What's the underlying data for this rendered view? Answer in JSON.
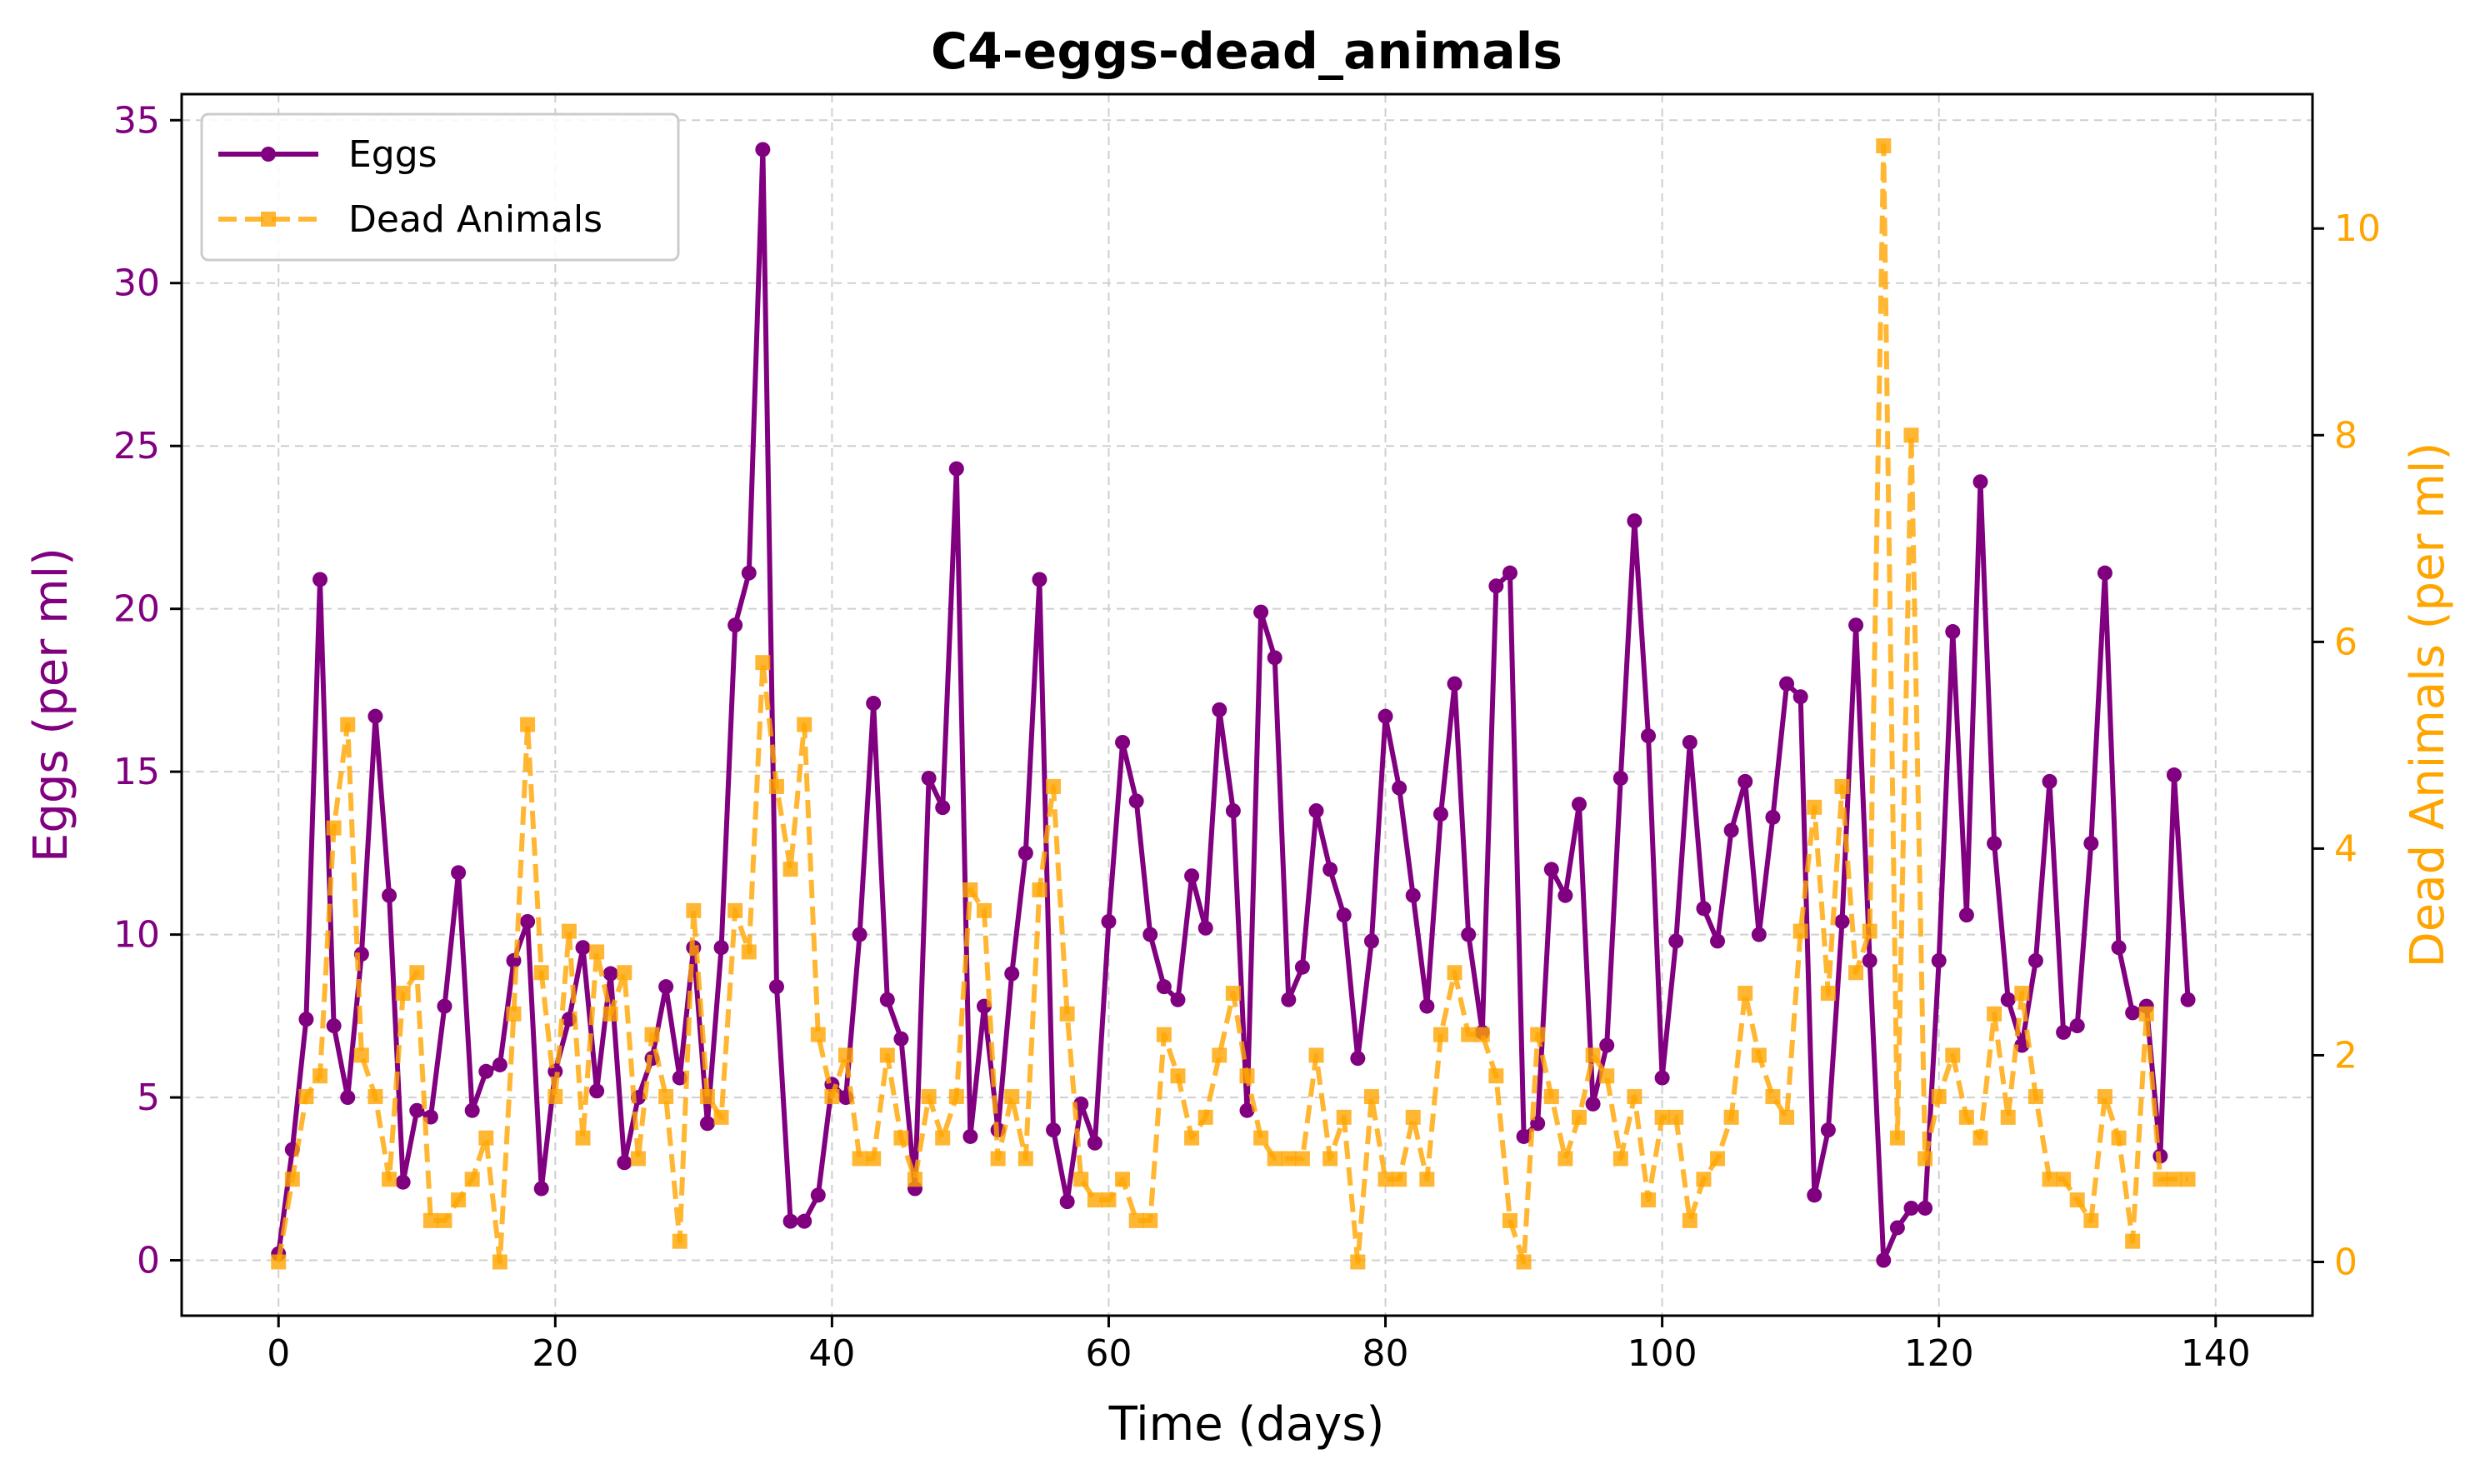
{
  "chart_data": {
    "type": "line",
    "title": "C4-eggs-dead_animals",
    "xlabel": "Time (days)",
    "ylabel": "Eggs (per ml)",
    "ylabel_right": "Dead Animals (per ml)",
    "xlim": [
      -7,
      147
    ],
    "ylim": [
      -1.7,
      35.8
    ],
    "ylim_right": [
      -0.52,
      11.3
    ],
    "x_ticks": [
      0,
      20,
      40,
      60,
      80,
      100,
      120,
      140
    ],
    "y_ticks": [
      0,
      5,
      10,
      15,
      20,
      25,
      30,
      35
    ],
    "y_ticks_right": [
      0,
      2,
      4,
      6,
      8,
      10
    ],
    "grid": true,
    "legend_position": "top-left",
    "x": [
      0,
      1,
      2,
      3,
      4,
      5,
      6,
      7,
      8,
      9,
      10,
      11,
      12,
      13,
      14,
      15,
      16,
      17,
      18,
      19,
      20,
      21,
      22,
      23,
      24,
      25,
      26,
      27,
      28,
      29,
      30,
      31,
      32,
      33,
      34,
      35,
      36,
      37,
      38,
      39,
      40,
      41,
      42,
      43,
      44,
      45,
      46,
      47,
      48,
      49,
      50,
      51,
      52,
      53,
      54,
      55,
      56,
      57,
      58,
      59,
      60,
      61,
      62,
      63,
      64,
      65,
      66,
      67,
      68,
      69,
      70,
      71,
      72,
      73,
      74,
      75,
      76,
      77,
      78,
      79,
      80,
      81,
      82,
      83,
      84,
      85,
      86,
      87,
      88,
      89,
      90,
      91,
      92,
      93,
      94,
      95,
      96,
      97,
      98,
      99,
      100,
      101,
      102,
      103,
      104,
      105,
      106,
      107,
      108,
      109,
      110,
      111,
      112,
      113,
      114,
      115,
      116,
      117,
      118,
      119,
      120,
      121,
      122,
      123,
      124,
      125,
      126,
      127,
      128,
      129,
      130,
      131,
      132,
      133,
      134,
      135,
      136,
      137,
      138
    ],
    "series": [
      {
        "name": "Eggs",
        "color": "#800080",
        "style": "solid",
        "marker": "circle",
        "axis": "left",
        "values": [
          0.2,
          3.4,
          7.4,
          20.9,
          7.2,
          5.0,
          9.4,
          16.7,
          11.2,
          2.4,
          4.6,
          4.4,
          7.8,
          11.9,
          4.6,
          5.8,
          6.0,
          9.2,
          10.4,
          2.2,
          5.8,
          7.4,
          9.6,
          5.2,
          8.8,
          3.0,
          5.0,
          6.2,
          8.4,
          5.6,
          9.6,
          4.2,
          9.6,
          19.5,
          21.1,
          34.1,
          8.4,
          1.2,
          1.2,
          2.0,
          5.4,
          5.0,
          10.0,
          17.1,
          8.0,
          6.8,
          2.2,
          14.8,
          13.9,
          24.3,
          3.8,
          7.8,
          4.0,
          8.8,
          12.5,
          20.9,
          4.0,
          1.8,
          4.8,
          3.6,
          10.4,
          15.9,
          14.1,
          10.0,
          8.4,
          8.0,
          11.8,
          10.2,
          16.9,
          13.8,
          4.6,
          19.9,
          18.5,
          8.0,
          9.0,
          13.8,
          12.0,
          10.6,
          6.2,
          9.8,
          16.7,
          14.5,
          11.2,
          7.8,
          13.7,
          17.7,
          10.0,
          7.0,
          20.7,
          21.1,
          3.8,
          4.2,
          12.0,
          11.2,
          14.0,
          4.8,
          6.6,
          14.8,
          22.7,
          16.1,
          5.6,
          9.8,
          15.9,
          10.8,
          9.8,
          13.2,
          14.7,
          10.0,
          13.6,
          17.7,
          17.3,
          2.0,
          4.0,
          10.4,
          19.5,
          9.2,
          0.0,
          1.0,
          1.6,
          1.6,
          9.2,
          19.3,
          10.6,
          23.9,
          12.8,
          8.0,
          6.6,
          9.2,
          14.7,
          7.0,
          7.2,
          12.8,
          21.1,
          9.6,
          7.6,
          7.8,
          3.2,
          14.9,
          8.0
        ]
      },
      {
        "name": "Dead Animals",
        "color": "#FFA500",
        "style": "dashed",
        "marker": "square",
        "axis": "right",
        "values": [
          0.0,
          0.8,
          1.6,
          1.8,
          4.2,
          5.2,
          2.0,
          1.6,
          0.8,
          2.6,
          2.8,
          0.4,
          0.4,
          0.6,
          0.8,
          1.2,
          0.0,
          2.4,
          5.2,
          2.8,
          1.6,
          3.2,
          1.2,
          3.0,
          2.4,
          2.8,
          1.0,
          2.2,
          1.6,
          0.2,
          3.4,
          1.6,
          1.4,
          3.4,
          3.0,
          5.8,
          4.6,
          3.8,
          5.2,
          2.2,
          1.6,
          2.0,
          1.0,
          1.0,
          2.0,
          1.2,
          0.8,
          1.6,
          1.2,
          1.6,
          3.6,
          3.4,
          1.0,
          1.6,
          1.0,
          3.6,
          4.6,
          2.4,
          0.8,
          0.6,
          0.6,
          0.8,
          0.4,
          0.4,
          2.2,
          1.8,
          1.2,
          1.4,
          2.0,
          2.6,
          1.8,
          1.2,
          1.0,
          1.0,
          1.0,
          2.0,
          1.0,
          1.4,
          0.0,
          1.6,
          0.8,
          0.8,
          1.4,
          0.8,
          2.2,
          2.8,
          2.2,
          2.2,
          1.8,
          0.4,
          0.0,
          2.2,
          1.6,
          1.0,
          1.4,
          2.0,
          1.8,
          1.0,
          1.6,
          0.6,
          1.4,
          1.4,
          0.4,
          0.8,
          1.0,
          1.4,
          2.6,
          2.0,
          1.6,
          1.4,
          3.2,
          4.4,
          2.6,
          4.6,
          2.8,
          3.2,
          10.8,
          1.2,
          8.0,
          1.0,
          1.6,
          2.0,
          1.4,
          1.2,
          2.4,
          1.4,
          2.6,
          1.6,
          0.8,
          0.8,
          0.6,
          0.4,
          1.6,
          1.2,
          0.2,
          2.4,
          0.8,
          0.8,
          0.8
        ]
      }
    ]
  }
}
